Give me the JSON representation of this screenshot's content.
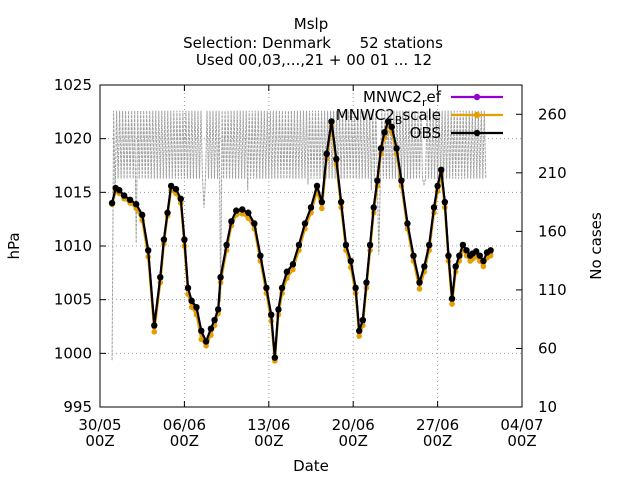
{
  "chart_data": {
    "type": "line",
    "title_lines": [
      "Mslp",
      "Selection: Denmark      52 stations",
      "Used 00,03,...,21 + 00 01 ... 12"
    ],
    "xlabel": "Date",
    "ylabel": "hPa",
    "y2label": "No cases",
    "x_ticks": [
      {
        "line1": "30/05",
        "line2": "00Z",
        "day": 0
      },
      {
        "line1": "06/06",
        "line2": "00Z",
        "day": 7
      },
      {
        "line1": "13/06",
        "line2": "00Z",
        "day": 14
      },
      {
        "line1": "20/06",
        "line2": "00Z",
        "day": 21
      },
      {
        "line1": "27/06",
        "line2": "00Z",
        "day": 28
      },
      {
        "line1": "04/07",
        "line2": "00Z",
        "day": 35
      }
    ],
    "xlim_days": [
      0,
      35
    ],
    "ylim": [
      995,
      1025
    ],
    "y_ticks": [
      995,
      1000,
      1005,
      1010,
      1015,
      1020,
      1025
    ],
    "y2lim": [
      10,
      285
    ],
    "y2_ticks": [
      10,
      60,
      110,
      160,
      210,
      260
    ],
    "grid": true,
    "legend_position": "top-right",
    "colors": {
      "ref": "#9400d3",
      "scale": "#e69f00",
      "obs": "#000000",
      "cases": "#a0a0a0",
      "grid": "#a0a0a0"
    },
    "series": [
      {
        "name": "MNWC2_ref",
        "key": "ref",
        "x_days": [
          1.0,
          1.3,
          1.6,
          2.0,
          2.5,
          3.0,
          3.5,
          4.0,
          4.5,
          5.0,
          5.3,
          5.6,
          5.9,
          6.3,
          6.7,
          7.0,
          7.3,
          7.6,
          8.0,
          8.4,
          8.8,
          9.2,
          9.5,
          9.8,
          10.0,
          10.5,
          10.9,
          11.3,
          11.8,
          12.3,
          12.8,
          13.3,
          13.8,
          14.2,
          14.5,
          14.8,
          15.1,
          15.5,
          16.0,
          16.5,
          17.0,
          17.5,
          18.0,
          18.4,
          18.8,
          19.2,
          19.6,
          20.0,
          20.4,
          20.8,
          21.2,
          21.5,
          21.8,
          22.1,
          22.4,
          22.7,
          23.0,
          23.3,
          23.6,
          23.9,
          24.2,
          24.6,
          25.0,
          25.5,
          26.0,
          26.5,
          26.9,
          27.3,
          27.7,
          28.0,
          28.3,
          28.6,
          28.9,
          29.2,
          29.5,
          29.8,
          30.1,
          30.4,
          30.7,
          30.9,
          31.2,
          31.5,
          31.8,
          32.1,
          32.4
        ],
        "values": [
          1014.0,
          1015.3,
          1015.1,
          1014.6,
          1014.2,
          1013.8,
          1012.8,
          1009.5,
          1002.5,
          1007.0,
          1010.5,
          1013.0,
          1015.5,
          1015.2,
          1014.3,
          1010.5,
          1006.0,
          1004.8,
          1004.2,
          1002.0,
          1001.0,
          1002.2,
          1003.0,
          1004.0,
          1007.0,
          1010.0,
          1012.2,
          1013.2,
          1013.3,
          1013.0,
          1012.0,
          1009.0,
          1006.0,
          1003.5,
          999.5,
          1004.0,
          1006.0,
          1007.5,
          1008.2,
          1010.0,
          1012.0,
          1013.5,
          1015.5,
          1014.0,
          1018.5,
          1021.5,
          1018.0,
          1014.0,
          1010.0,
          1008.5,
          1006.0,
          1002.0,
          1003.0,
          1006.5,
          1010.0,
          1013.5,
          1016.0,
          1019.0,
          1020.5,
          1021.5,
          1021.0,
          1019.0,
          1016.0,
          1012.0,
          1009.0,
          1006.5,
          1008.0,
          1010.0,
          1013.5,
          1015.5,
          1017.0,
          1014.0,
          1009.0,
          1005.0,
          1008.0,
          1009.0,
          1010.0,
          1009.5,
          1009.0,
          1009.2,
          1009.4,
          1009.0,
          1008.5,
          1009.3,
          1009.5
        ]
      },
      {
        "name": "MNWC2_Bscale",
        "key": "scale",
        "x_days": [
          1.0,
          1.3,
          1.6,
          2.0,
          2.5,
          3.0,
          3.5,
          4.0,
          4.5,
          5.0,
          5.3,
          5.6,
          5.9,
          6.3,
          6.7,
          7.0,
          7.3,
          7.6,
          8.0,
          8.4,
          8.8,
          9.2,
          9.5,
          9.8,
          10.0,
          10.5,
          10.9,
          11.3,
          11.8,
          12.3,
          12.8,
          13.3,
          13.8,
          14.2,
          14.5,
          14.8,
          15.1,
          15.5,
          16.0,
          16.5,
          17.0,
          17.5,
          18.0,
          18.4,
          18.8,
          19.2,
          19.6,
          20.0,
          20.4,
          20.8,
          21.2,
          21.5,
          21.8,
          22.1,
          22.4,
          22.7,
          23.0,
          23.3,
          23.6,
          23.9,
          24.2,
          24.6,
          25.0,
          25.5,
          26.0,
          26.5,
          26.9,
          27.3,
          27.7,
          28.0,
          28.3,
          28.6,
          28.9,
          29.2,
          29.5,
          29.8,
          30.1,
          30.4,
          30.7,
          30.9,
          31.2,
          31.5,
          31.8,
          32.1,
          32.4
        ],
        "values": [
          1013.9,
          1015.1,
          1014.9,
          1014.4,
          1014.0,
          1013.5,
          1012.4,
          1009.0,
          1002.0,
          1006.6,
          1010.2,
          1012.8,
          1015.2,
          1014.9,
          1014.0,
          1010.0,
          1005.5,
          1004.3,
          1003.6,
          1001.3,
          1000.7,
          1001.7,
          1002.6,
          1003.7,
          1006.6,
          1009.6,
          1011.9,
          1012.9,
          1013.0,
          1012.6,
          1011.6,
          1008.6,
          1005.6,
          1003.0,
          999.3,
          1003.6,
          1005.6,
          1007.0,
          1007.8,
          1009.6,
          1011.6,
          1013.1,
          1015.1,
          1013.5,
          1018.1,
          1021.2,
          1017.6,
          1013.6,
          1009.6,
          1008.0,
          1005.6,
          1001.6,
          1002.6,
          1006.1,
          1009.6,
          1013.1,
          1015.6,
          1018.6,
          1020.1,
          1021.2,
          1020.6,
          1018.6,
          1015.6,
          1011.6,
          1008.6,
          1006.0,
          1007.6,
          1009.6,
          1013.1,
          1015.1,
          1016.6,
          1013.6,
          1008.6,
          1004.6,
          1007.6,
          1008.6,
          1009.6,
          1009.1,
          1008.6,
          1008.8,
          1009.0,
          1008.6,
          1008.1,
          1008.9,
          1009.1
        ]
      },
      {
        "name": "OBS",
        "key": "obs",
        "x_days": [
          1.0,
          1.3,
          1.6,
          2.0,
          2.5,
          3.0,
          3.5,
          4.0,
          4.5,
          5.0,
          5.3,
          5.6,
          5.9,
          6.3,
          6.7,
          7.0,
          7.3,
          7.6,
          8.0,
          8.4,
          8.8,
          9.2,
          9.5,
          9.8,
          10.0,
          10.5,
          10.9,
          11.3,
          11.8,
          12.3,
          12.8,
          13.3,
          13.8,
          14.2,
          14.5,
          14.8,
          15.1,
          15.5,
          16.0,
          16.5,
          17.0,
          17.5,
          18.0,
          18.4,
          18.8,
          19.2,
          19.6,
          20.0,
          20.4,
          20.8,
          21.2,
          21.5,
          21.8,
          22.1,
          22.4,
          22.7,
          23.0,
          23.3,
          23.6,
          23.9,
          24.2,
          24.6,
          25.0,
          25.5,
          26.0,
          26.5,
          26.9,
          27.3,
          27.7,
          28.0,
          28.3,
          28.6,
          28.9,
          29.2,
          29.5,
          29.8,
          30.1,
          30.4,
          30.7,
          30.9,
          31.2,
          31.5,
          31.8,
          32.1,
          32.4
        ],
        "values": [
          1014.0,
          1015.4,
          1015.2,
          1014.7,
          1014.3,
          1013.9,
          1012.9,
          1009.6,
          1002.6,
          1007.1,
          1010.6,
          1013.1,
          1015.6,
          1015.3,
          1014.4,
          1010.6,
          1006.1,
          1004.9,
          1004.3,
          1002.1,
          1001.1,
          1002.3,
          1003.1,
          1004.1,
          1007.1,
          1010.1,
          1012.3,
          1013.3,
          1013.4,
          1013.1,
          1012.1,
          1009.1,
          1006.1,
          1003.6,
          999.6,
          1004.1,
          1006.1,
          1007.6,
          1008.3,
          1010.1,
          1012.1,
          1013.6,
          1015.6,
          1014.1,
          1018.6,
          1021.6,
          1018.1,
          1014.1,
          1010.1,
          1008.6,
          1006.1,
          1002.1,
          1003.1,
          1006.6,
          1010.1,
          1013.6,
          1016.1,
          1019.1,
          1020.6,
          1021.6,
          1021.1,
          1019.1,
          1016.1,
          1012.1,
          1009.1,
          1006.6,
          1008.1,
          1010.1,
          1013.6,
          1015.6,
          1017.1,
          1014.1,
          1009.1,
          1005.1,
          1008.1,
          1009.1,
          1010.1,
          1009.6,
          1009.1,
          1009.3,
          1009.5,
          1009.1,
          1008.6,
          1009.4,
          1009.6
        ]
      },
      {
        "name": "No cases",
        "key": "cases",
        "axis": "y2",
        "x_start_day": 1.0,
        "x_end_day": 32.0,
        "low": 205,
        "high": 263,
        "dips": [
          {
            "day": 1.0,
            "value": 50
          },
          {
            "day": 1.3,
            "value": 190
          },
          {
            "day": 3.0,
            "value": 150
          },
          {
            "day": 8.6,
            "value": 180
          },
          {
            "day": 10.0,
            "value": 100
          },
          {
            "day": 12.2,
            "value": 195
          },
          {
            "day": 17.3,
            "value": 200
          },
          {
            "day": 22.5,
            "value": 195
          },
          {
            "day": 23.1,
            "value": 140
          },
          {
            "day": 26.9,
            "value": 200
          }
        ]
      }
    ],
    "legend": [
      {
        "label": "MNWC2_ref",
        "base": "MNWC2",
        "sub": "r",
        "rest": "ef",
        "key": "ref"
      },
      {
        "label": "MNWC2_Bscale",
        "base": "MNWC2",
        "sub": "B",
        "rest": "scale",
        "key": "scale"
      },
      {
        "label": "OBS",
        "base": "",
        "sub": "",
        "rest": "OBS",
        "key": "obs"
      }
    ]
  }
}
